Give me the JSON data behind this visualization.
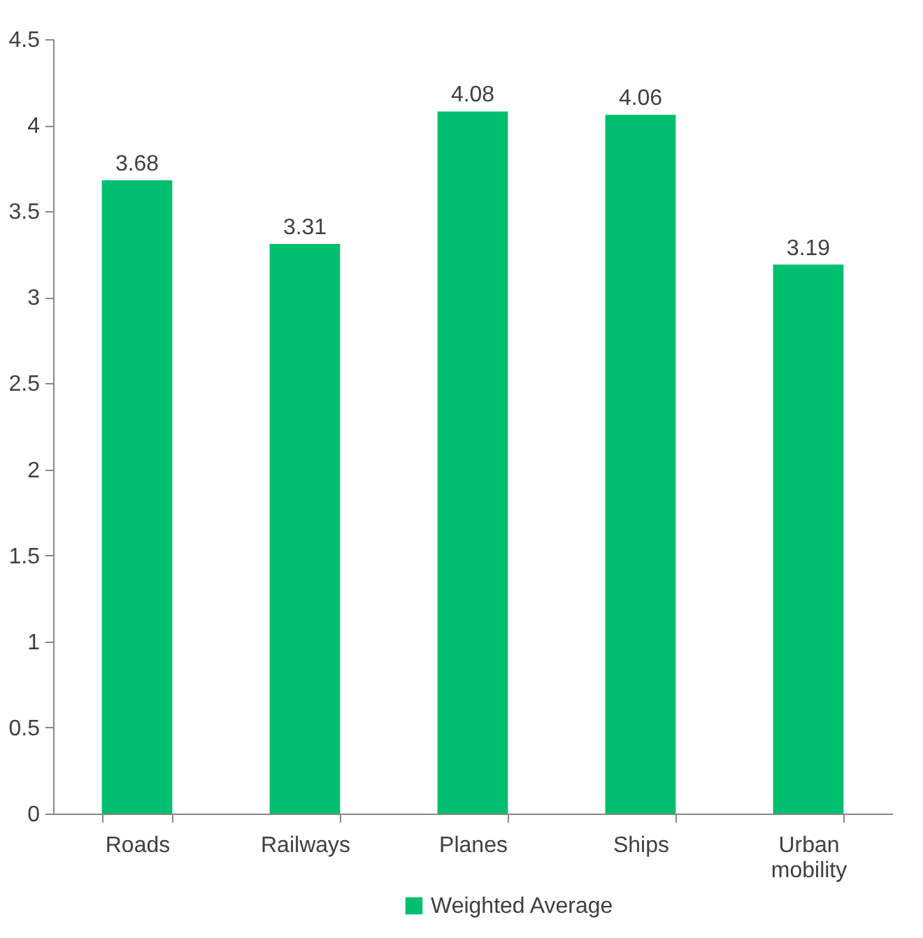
{
  "chart_data": {
    "type": "bar",
    "categories": [
      "Roads",
      "Railways",
      "Planes",
      "Ships",
      "Urban mobility"
    ],
    "series": [
      {
        "name": "Weighted Average",
        "color": "#00bf6f",
        "values": [
          3.68,
          3.31,
          4.08,
          4.06,
          3.19
        ]
      }
    ],
    "ylim": [
      0,
      4.5
    ],
    "yticks": [
      0,
      0.5,
      1,
      1.5,
      2,
      2.5,
      3,
      3.5,
      4,
      4.5
    ],
    "data_labels": true,
    "grid": false,
    "legend": "bottom"
  }
}
